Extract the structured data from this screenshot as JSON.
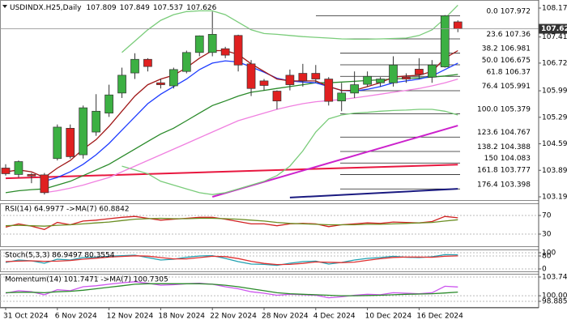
{
  "chart_data": [
    {
      "type": "candlestick",
      "title": "USDINDX.H25,Daily",
      "header_values": [
        107.809,
        107.849,
        107.537,
        107.626
      ],
      "categories": [
        "31 Oct 2024",
        null,
        null,
        null,
        "6 Nov 2024",
        null,
        null,
        null,
        "12 Nov 2024",
        null,
        null,
        null,
        "18 Nov 2024",
        null,
        null,
        null,
        "22 Nov 2024",
        null,
        null,
        null,
        "28 Nov 2024",
        null,
        null,
        null,
        "4 Dec 2024",
        null,
        null,
        null,
        "10 Dec 2024",
        null,
        null,
        null,
        "16 Dec 2024",
        null,
        null,
        null
      ],
      "open": [
        103.95,
        103.78,
        103.78,
        103.77,
        104.2,
        105.0,
        104.3,
        104.9,
        105.4,
        105.93,
        106.46,
        106.82,
        106.2,
        106.12,
        106.5,
        107.0,
        107.0,
        107.1,
        107.45,
        106.7,
        106.25,
        105.98,
        106.4,
        106.45,
        106.45,
        106.3,
        105.72,
        105.93,
        106.16,
        106.2,
        106.2,
        106.35,
        106.56,
        106.35,
        106.62,
        107.809
      ],
      "high": [
        104.05,
        104.15,
        103.82,
        103.82,
        105.1,
        105.1,
        105.6,
        105.9,
        106.15,
        106.6,
        106.98,
        106.85,
        106.3,
        106.6,
        107.05,
        107.45,
        108.08,
        107.15,
        107.47,
        106.8,
        106.3,
        106.0,
        106.55,
        106.7,
        106.67,
        106.35,
        106.2,
        106.5,
        106.5,
        106.35,
        106.9,
        106.45,
        106.85,
        106.8,
        107.99,
        107.849
      ],
      "low": [
        103.75,
        103.7,
        103.55,
        103.25,
        104.15,
        104.2,
        104.2,
        104.8,
        105.3,
        105.8,
        106.3,
        106.5,
        106.05,
        106.05,
        106.45,
        106.9,
        106.9,
        106.85,
        106.5,
        105.85,
        106.0,
        105.5,
        106.0,
        106.1,
        106.2,
        105.6,
        105.45,
        105.8,
        106.1,
        106.1,
        106.1,
        106.2,
        106.3,
        106.2,
        106.6,
        107.537
      ],
      "close": [
        103.8,
        104.12,
        103.74,
        103.3,
        105.03,
        104.25,
        105.54,
        105.45,
        105.88,
        106.4,
        106.82,
        106.63,
        106.15,
        106.55,
        107.0,
        107.44,
        107.48,
        106.93,
        106.67,
        106.05,
        106.13,
        105.72,
        106.15,
        106.25,
        106.3,
        105.71,
        105.93,
        106.15,
        106.37,
        106.3,
        106.67,
        106.3,
        106.42,
        106.67,
        107.97,
        107.626
      ],
      "up_color": "#3cb043",
      "down_color": "#e02020",
      "series": [
        {
          "color": "#7acc7a",
          "values": [
            null,
            null,
            null,
            null,
            null,
            null,
            null,
            null,
            null,
            107.0,
            107.3,
            107.6,
            107.85,
            108.0,
            108.08,
            108.1,
            108.1,
            108.0,
            107.8,
            107.6,
            107.5,
            107.48,
            107.45,
            107.42,
            107.4,
            107.38,
            107.36,
            107.35,
            107.35,
            107.36,
            107.37,
            107.38,
            107.45,
            107.6,
            107.9,
            108.25
          ]
        },
        {
          "color": "#7acc7a",
          "values": [
            null,
            null,
            null,
            null,
            null,
            null,
            null,
            null,
            null,
            104.0,
            103.9,
            103.8,
            103.6,
            103.5,
            103.4,
            103.3,
            103.25,
            103.3,
            103.4,
            103.5,
            103.6,
            103.75,
            104.0,
            104.4,
            104.9,
            105.25,
            105.35,
            105.4,
            105.42,
            105.45,
            105.47,
            105.48,
            105.5,
            105.5,
            105.45,
            105.35
          ]
        },
        {
          "color": "#f080e0",
          "values": [
            null,
            null,
            null,
            103.3,
            103.35,
            103.42,
            103.5,
            103.6,
            103.7,
            103.85,
            104.0,
            104.15,
            104.3,
            104.45,
            104.6,
            104.75,
            104.9,
            105.05,
            105.2,
            105.3,
            105.4,
            105.5,
            105.58,
            105.65,
            105.7,
            105.73,
            105.76,
            105.8,
            105.85,
            105.9,
            105.95,
            106.0,
            106.05,
            106.12,
            106.2,
            106.3
          ]
        },
        {
          "color": "#2a8a2a",
          "values": [
            103.3,
            103.35,
            103.38,
            103.4,
            103.5,
            103.6,
            103.75,
            103.9,
            104.05,
            104.25,
            104.45,
            104.65,
            104.85,
            105.0,
            105.2,
            105.4,
            105.6,
            105.72,
            105.85,
            105.95,
            106.0,
            106.05,
            106.1,
            106.15,
            106.2,
            106.2,
            106.22,
            106.24,
            106.26,
            106.28,
            106.3,
            106.32,
            106.33,
            106.35,
            106.38,
            106.42
          ]
        },
        {
          "color": "#1e3cff",
          "values": [
            null,
            null,
            null,
            103.6,
            103.7,
            103.85,
            104.05,
            104.3,
            104.6,
            104.95,
            105.3,
            105.65,
            105.9,
            106.1,
            106.3,
            106.55,
            106.72,
            106.78,
            106.75,
            106.62,
            106.48,
            106.32,
            106.25,
            106.22,
            106.2,
            106.1,
            106.0,
            105.98,
            106.03,
            106.1,
            106.2,
            106.25,
            106.3,
            106.38,
            106.55,
            106.72
          ]
        },
        {
          "color": "#a01818",
          "values": [
            103.85,
            103.9,
            103.85,
            103.7,
            103.95,
            104.15,
            104.45,
            104.7,
            105.05,
            105.45,
            105.85,
            106.15,
            106.3,
            106.4,
            106.6,
            106.85,
            107.05,
            107.05,
            106.95,
            106.7,
            106.5,
            106.3,
            106.25,
            106.25,
            106.25,
            106.1,
            106.0,
            106.0,
            106.1,
            106.2,
            106.35,
            106.38,
            106.4,
            106.5,
            106.85,
            107.05
          ]
        }
      ],
      "trendlines": [
        {
          "color": "#e8173f",
          "x": [
            0,
            35
          ],
          "values": [
            103.68,
            104.04
          ]
        },
        {
          "color": "#cc22cc",
          "x": [
            16,
            35
          ],
          "values": [
            103.19,
            105.07
          ]
        },
        {
          "color": "#1a1a80",
          "x": [
            22,
            35
          ],
          "values": [
            103.17,
            103.4
          ]
        }
      ],
      "fib_levels": [
        {
          "label": "0.0",
          "value": 107.972
        },
        {
          "label": "23.6",
          "value": 107.36
        },
        {
          "label": "38.2",
          "value": 106.981
        },
        {
          "label": "50.0",
          "value": 106.675
        },
        {
          "label": "61.8",
          "value": 106.37
        },
        {
          "label": "76.4",
          "value": 105.991
        },
        {
          "label": "100.0",
          "value": 105.379
        },
        {
          "label": "123.6",
          "value": 104.767
        },
        {
          "label": "138.2",
          "value": 104.388
        },
        {
          "label": "150",
          "value": 104.083
        },
        {
          "label": "161.8",
          "value": 103.777
        },
        {
          "label": "176.4",
          "value": 103.398
        }
      ],
      "last_price": {
        "value": 107.626,
        "label": "107.626"
      },
      "ylim": [
        103.083,
        108.386
      ],
      "yticks": [
        108.172,
        {
          "value": 107.41,
          "label": "107.410"
        },
        {
          "value": 106.72,
          "label": "106.720"
        },
        {
          "value": 105.99,
          "label": "105.990"
        },
        {
          "value": 105.29,
          "label": "105.290"
        },
        {
          "value": 104.59,
          "label": "104.590"
        },
        {
          "value": 103.89,
          "label": "103.890"
        },
        {
          "value": 103.19,
          "label": "103.190"
        }
      ]
    },
    {
      "type": "line",
      "title": "RSI(14) 64.9977 ->MA(7) 60.8842",
      "ylim": [
        2.2,
        96.1
      ],
      "yticks": [
        70,
        30
      ],
      "series": [
        {
          "color": "#d02020",
          "values": [
            45,
            52,
            47,
            40,
            55,
            50,
            58,
            60,
            63,
            66,
            68,
            64,
            60,
            62,
            64,
            66,
            66,
            62,
            57,
            52,
            52,
            48,
            52,
            53,
            52,
            46,
            50,
            52,
            54,
            53,
            56,
            55,
            54,
            57,
            68,
            64.9977
          ]
        },
        {
          "color": "#6b8e23",
          "values": [
            48,
            49,
            48,
            47,
            49,
            50,
            52,
            54,
            56,
            59,
            62,
            63,
            64,
            63,
            63,
            64,
            64,
            63,
            62,
            60,
            58,
            55,
            53,
            52,
            51,
            50,
            50,
            50,
            51,
            51,
            52,
            53,
            54,
            55,
            58,
            60.8842
          ]
        }
      ]
    },
    {
      "type": "line",
      "title": "Stoch(5,3,3) 86.9497 80.3554",
      "ylim": [
        -20,
        120
      ],
      "yticks": [
        100,
        80,
        0
      ],
      "series": [
        {
          "color": "#20a0b0",
          "values": [
            40,
            55,
            50,
            35,
            60,
            55,
            70,
            72,
            78,
            82,
            85,
            70,
            55,
            60,
            72,
            80,
            82,
            65,
            45,
            30,
            28,
            22,
            35,
            45,
            48,
            30,
            40,
            55,
            65,
            70,
            78,
            72,
            70,
            75,
            88,
            86.9497
          ]
        },
        {
          "color": "#e03030",
          "values": [
            45,
            48,
            50,
            47,
            48,
            52,
            60,
            66,
            73,
            77,
            81,
            79,
            70,
            62,
            62,
            70,
            78,
            76,
            64,
            47,
            34,
            27,
            28,
            34,
            43,
            41,
            39,
            42,
            53,
            63,
            71,
            73,
            73,
            72,
            78,
            80.3554
          ]
        }
      ]
    },
    {
      "type": "line",
      "title": "Momentum(14) 101.7471 ->MA(7) 100.7305",
      "ylim": [
        97.59,
        104.39
      ],
      "yticks": [
        103.7456,
        {
          "value": 100,
          "label": "100.0000"
        },
        98.8855
      ],
      "series": [
        {
          "color": "#cc55ee",
          "values": [
            100.5,
            101,
            100.8,
            100.2,
            101.2,
            101,
            101.8,
            102,
            102.3,
            102.6,
            102.8,
            102.5,
            102.1,
            102.2,
            102.4,
            102.5,
            102.3,
            101.8,
            101.4,
            100.8,
            100.5,
            100.1,
            100.3,
            100.2,
            100.1,
            99.6,
            99.8,
            100.1,
            100.3,
            100.2,
            100.6,
            100.5,
            100.4,
            100.6,
            101.9,
            101.7471
          ]
        },
        {
          "color": "#2a8a2a",
          "values": [
            100.6,
            100.7,
            100.7,
            100.6,
            100.8,
            100.9,
            101.1,
            101.4,
            101.7,
            102,
            102.3,
            102.4,
            102.4,
            102.4,
            102.4,
            102.4,
            102.3,
            102.1,
            101.8,
            101.4,
            101,
            100.6,
            100.4,
            100.3,
            100.2,
            100.1,
            100,
            100,
            100.05,
            100.1,
            100.2,
            100.3,
            100.35,
            100.4,
            100.55,
            100.7305
          ]
        }
      ]
    }
  ]
}
